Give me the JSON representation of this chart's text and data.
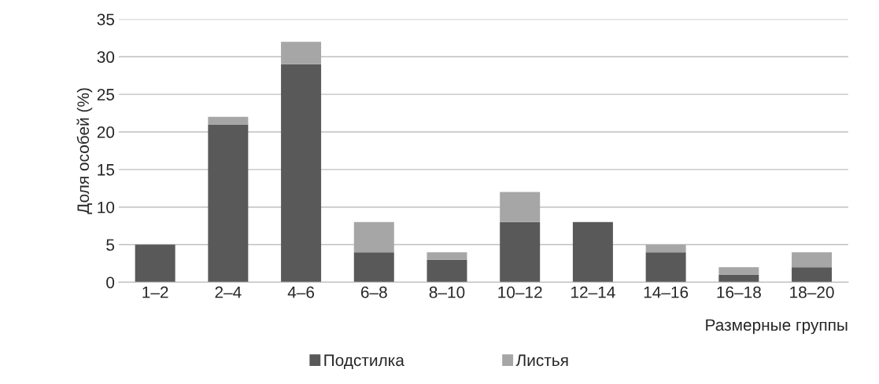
{
  "chart_data": {
    "type": "bar",
    "stacked": true,
    "xlabel": "Размерные группы",
    "ylabel": "Доля особей (%)",
    "categories": [
      "1–2",
      "2–4",
      "4–6",
      "6–8",
      "8–10",
      "10–12",
      "12–14",
      "14–16",
      "16–18",
      "18–20"
    ],
    "series": [
      {
        "name": "Подстилка",
        "color": "#595959",
        "values": [
          5,
          21,
          29,
          4,
          3,
          8,
          8,
          4,
          1,
          2
        ]
      },
      {
        "name": "Листья",
        "color": "#a6a6a6",
        "values": [
          0,
          1,
          3,
          4,
          1,
          4,
          0,
          1,
          1,
          2
        ]
      }
    ],
    "ylim": [
      0,
      35
    ],
    "yticks": [
      0,
      5,
      10,
      15,
      20,
      25,
      30,
      35
    ],
    "grid": "y",
    "legend": "bottom"
  }
}
